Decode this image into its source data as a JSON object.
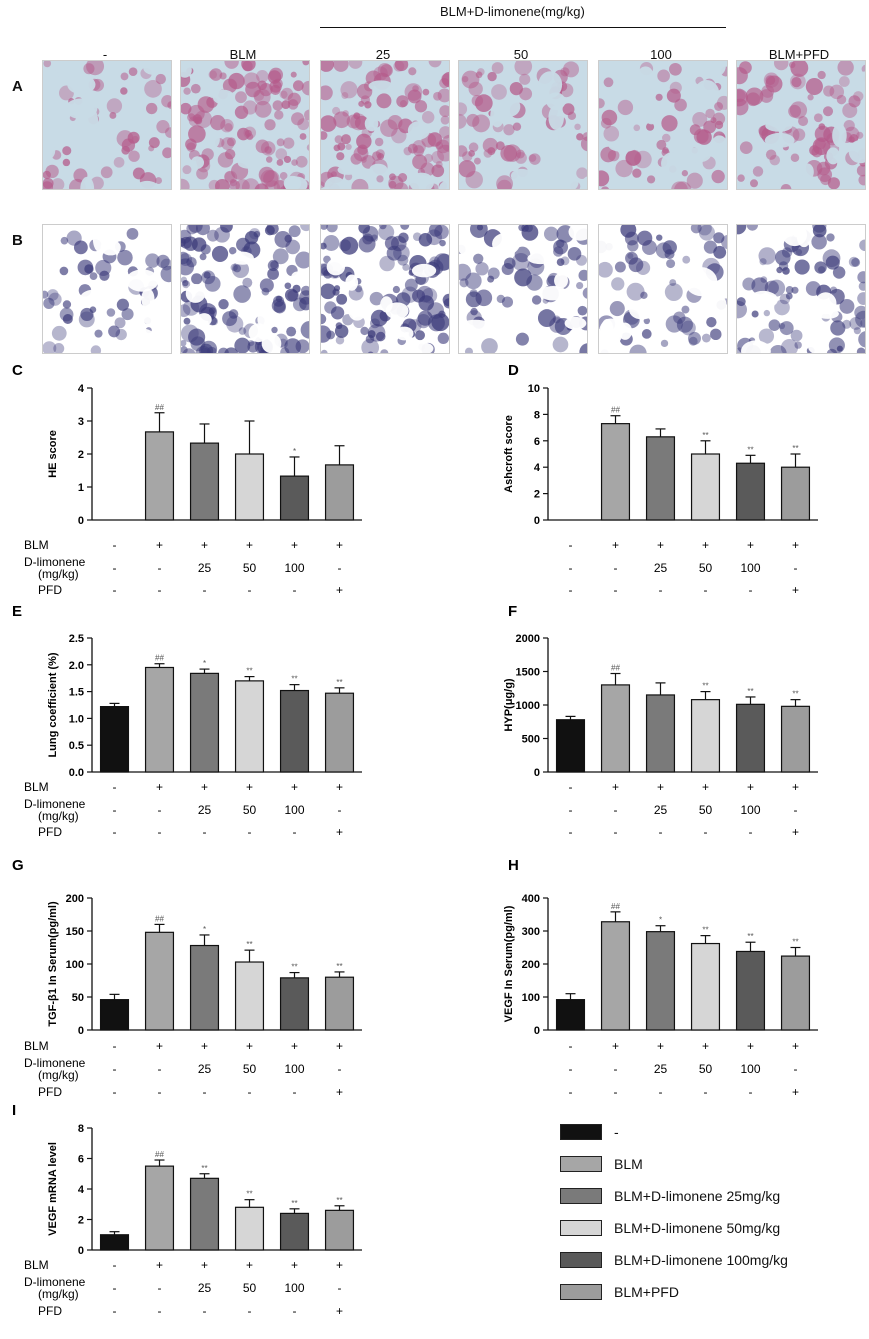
{
  "header": {
    "group_label": "BLM+D-limonene(mg/kg)",
    "columns": [
      "-",
      "BLM",
      "25",
      "50",
      "100",
      "BLM+PFD"
    ]
  },
  "row_labels": [
    "A",
    "B"
  ],
  "colors": {
    "black": "#111111",
    "blm": "#a6a6a6",
    "d25": "#7a7a7a",
    "d50": "#d6d6d6",
    "d100": "#5a5a5a",
    "pfd": "#9c9c9c",
    "he_bg": "#c8dbe6",
    "he_tissue": "#b55a8a",
    "masson_bg": "#ffffff",
    "masson_tissue": "#3b3a7a"
  },
  "row_labels_bottom": {
    "blm": "BLM",
    "dlim": "D-limonene\n(mg/kg)",
    "pfd": "PFD"
  },
  "chart_data": [
    {
      "panel": "C",
      "type": "bar",
      "ylabel": "HE score",
      "ylim": [
        0,
        4
      ],
      "yticks": [
        0,
        1,
        2,
        3,
        4
      ],
      "values": [
        0,
        2.67,
        2.33,
        2.0,
        1.33,
        1.67
      ],
      "errors": [
        0,
        0.58,
        0.58,
        1.0,
        0.58,
        0.58
      ],
      "sig": [
        "",
        "##",
        "",
        "",
        "*",
        ""
      ],
      "rows": {
        "blm": [
          "-",
          "+",
          "+",
          "+",
          "+",
          "+"
        ],
        "dlim": [
          "-",
          "-",
          "25",
          "50",
          "100",
          "-"
        ],
        "pfd": [
          "-",
          "-",
          "-",
          "-",
          "-",
          "+"
        ]
      }
    },
    {
      "panel": "D",
      "type": "bar",
      "ylabel": "Ashcroft score",
      "ylim": [
        0,
        10
      ],
      "yticks": [
        0,
        2,
        4,
        6,
        8,
        10
      ],
      "values": [
        0,
        7.3,
        6.3,
        5.0,
        4.3,
        4.0
      ],
      "errors": [
        0,
        0.6,
        0.6,
        1.0,
        0.6,
        1.0
      ],
      "sig": [
        "",
        "##",
        "",
        "**",
        "**",
        "**"
      ],
      "rows": {
        "blm": [
          "-",
          "+",
          "+",
          "+",
          "+",
          "+"
        ],
        "dlim": [
          "-",
          "-",
          "25",
          "50",
          "100",
          "-"
        ],
        "pfd": [
          "-",
          "-",
          "-",
          "-",
          "-",
          "+"
        ]
      }
    },
    {
      "panel": "E",
      "type": "bar",
      "ylabel": "Lung coefficient (%)",
      "ylim": [
        0,
        2.5
      ],
      "yticks": [
        0.0,
        0.5,
        1.0,
        1.5,
        2.0,
        2.5
      ],
      "values": [
        1.22,
        1.95,
        1.84,
        1.7,
        1.52,
        1.47
      ],
      "errors": [
        0.06,
        0.07,
        0.08,
        0.08,
        0.11,
        0.1
      ],
      "sig": [
        "",
        "##",
        "*",
        "**",
        "**",
        "**"
      ],
      "rows": {
        "blm": [
          "-",
          "+",
          "+",
          "+",
          "+",
          "+"
        ],
        "dlim": [
          "-",
          "-",
          "25",
          "50",
          "100",
          "-"
        ],
        "pfd": [
          "-",
          "-",
          "-",
          "-",
          "-",
          "+"
        ]
      }
    },
    {
      "panel": "F",
      "type": "bar",
      "ylabel": "HYP(μg/g)",
      "ylim": [
        0,
        2000
      ],
      "yticks": [
        0,
        500,
        1000,
        1500,
        2000
      ],
      "values": [
        780,
        1300,
        1150,
        1080,
        1010,
        980
      ],
      "errors": [
        50,
        170,
        180,
        120,
        110,
        100
      ],
      "sig": [
        "",
        "##",
        "",
        "**",
        "**",
        "**"
      ],
      "rows": {
        "blm": [
          "-",
          "+",
          "+",
          "+",
          "+",
          "+"
        ],
        "dlim": [
          "-",
          "-",
          "25",
          "50",
          "100",
          "-"
        ],
        "pfd": [
          "-",
          "-",
          "-",
          "-",
          "-",
          "+"
        ]
      }
    },
    {
      "panel": "G",
      "type": "bar",
      "ylabel": "TGF-β1 In Serum(pg/ml)",
      "ylim": [
        0,
        200
      ],
      "yticks": [
        0,
        50,
        100,
        150,
        200
      ],
      "values": [
        46,
        148,
        128,
        103,
        79,
        80
      ],
      "errors": [
        8,
        12,
        16,
        18,
        8,
        8
      ],
      "sig": [
        "",
        "##",
        "*",
        "**",
        "**",
        "**"
      ],
      "rows": {
        "blm": [
          "-",
          "+",
          "+",
          "+",
          "+",
          "+"
        ],
        "dlim": [
          "-",
          "-",
          "25",
          "50",
          "100",
          "-"
        ],
        "pfd": [
          "-",
          "-",
          "-",
          "-",
          "-",
          "+"
        ]
      }
    },
    {
      "panel": "H",
      "type": "bar",
      "ylabel": "VEGF In Serum(pg/ml)",
      "ylim": [
        0,
        400
      ],
      "yticks": [
        0,
        100,
        200,
        300,
        400
      ],
      "values": [
        92,
        328,
        298,
        262,
        238,
        224
      ],
      "errors": [
        18,
        30,
        18,
        24,
        28,
        26
      ],
      "sig": [
        "",
        "##",
        "*",
        "**",
        "**",
        "**"
      ],
      "rows": {
        "blm": [
          "-",
          "+",
          "+",
          "+",
          "+",
          "+"
        ],
        "dlim": [
          "-",
          "-",
          "25",
          "50",
          "100",
          "-"
        ],
        "pfd": [
          "-",
          "-",
          "-",
          "-",
          "-",
          "+"
        ]
      }
    },
    {
      "panel": "I",
      "type": "bar",
      "ylabel": "VEGF mRNA level",
      "ylim": [
        0,
        8
      ],
      "yticks": [
        0,
        2,
        4,
        6,
        8
      ],
      "values": [
        1.0,
        5.5,
        4.7,
        2.8,
        2.4,
        2.6
      ],
      "errors": [
        0.2,
        0.4,
        0.3,
        0.5,
        0.3,
        0.3
      ],
      "sig": [
        "",
        "##",
        "**",
        "**",
        "**",
        "**"
      ],
      "rows": {
        "blm": [
          "-",
          "+",
          "+",
          "+",
          "+",
          "+"
        ],
        "dlim": [
          "-",
          "-",
          "25",
          "50",
          "100",
          "-"
        ],
        "pfd": [
          "-",
          "-",
          "-",
          "-",
          "-",
          "+"
        ]
      }
    }
  ],
  "legend": [
    {
      "label": "-",
      "color": "#111111"
    },
    {
      "label": "BLM",
      "color": "#a6a6a6"
    },
    {
      "label": "BLM+D-limonene 25mg/kg",
      "color": "#7a7a7a"
    },
    {
      "label": "BLM+D-limonene 50mg/kg",
      "color": "#d6d6d6"
    },
    {
      "label": "BLM+D-limonene 100mg/kg",
      "color": "#5a5a5a"
    },
    {
      "label": "BLM+PFD",
      "color": "#9c9c9c"
    }
  ]
}
